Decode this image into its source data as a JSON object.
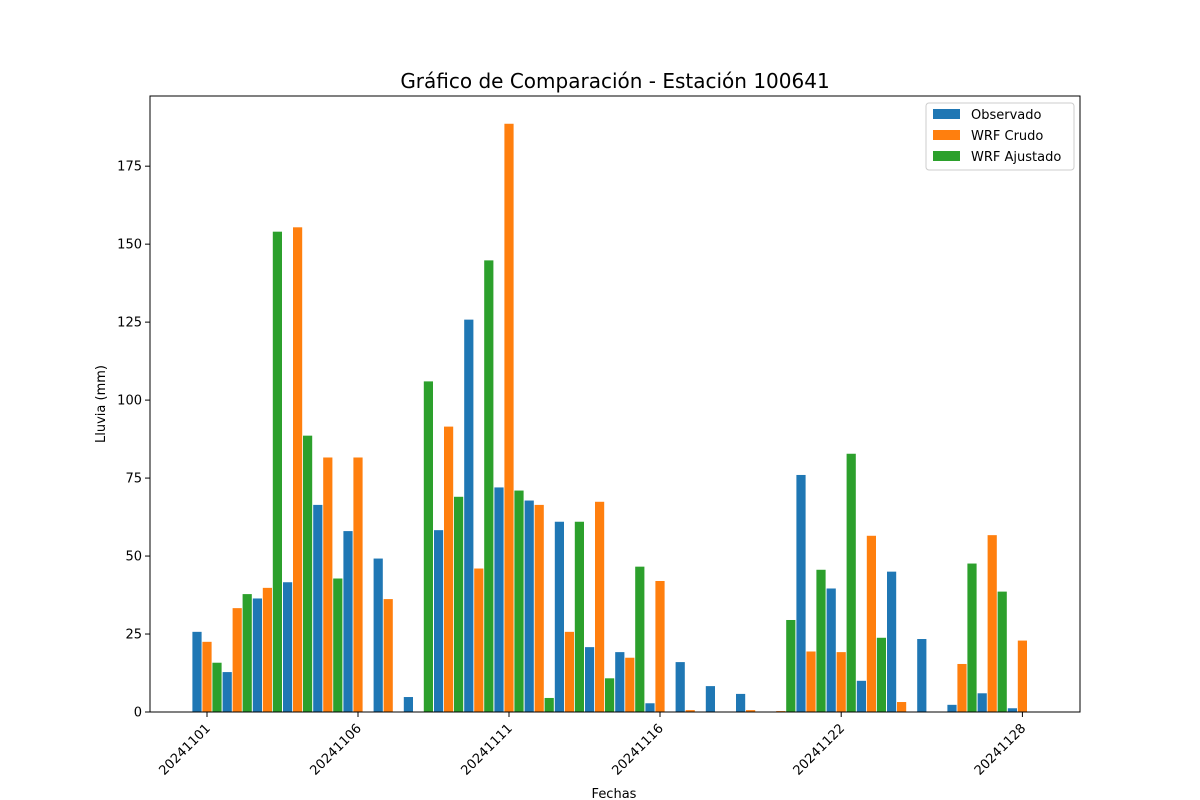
{
  "chart_data": {
    "type": "bar",
    "title": "Gráfico de Comparación - Estación 100641",
    "xlabel": "Fechas",
    "ylabel": "Lluvia (mm)",
    "ylim": [
      0,
      197.5
    ],
    "y_ticks": [
      0,
      25,
      50,
      75,
      100,
      125,
      150,
      175
    ],
    "x_tick_labels": [
      "20241101",
      "20241106",
      "20241111",
      "20241116",
      "20241122",
      "20241128"
    ],
    "grid": false,
    "legend_position": "top-right",
    "categories": [
      "20241101",
      "20241102",
      "20241103",
      "20241104",
      "20241105",
      "20241106",
      "20241107",
      "20241108",
      "20241109",
      "20241110",
      "20241111",
      "20241112",
      "20241113",
      "20241114",
      "20241115",
      "20241116",
      "20241117",
      "20241118",
      "20241119",
      "20241120",
      "20241121",
      "20241122",
      "20241123",
      "20241124",
      "20241125",
      "20241126",
      "20241127",
      "20241128",
      "20241129",
      "20241130"
    ],
    "series": [
      {
        "name": "Observado",
        "color": "#1f77b4",
        "values": [
          25.7,
          12.8,
          36.4,
          41.6,
          66.4,
          58.0,
          49.2,
          4.8,
          58.3,
          125.8,
          72.0,
          67.8,
          61.0,
          20.8,
          19.2,
          2.8,
          16.0,
          8.3,
          5.8,
          0.0,
          76.0,
          39.6,
          10.0,
          45.0,
          23.4,
          2.3,
          6.0,
          1.2,
          null,
          null
        ]
      },
      {
        "name": "WRF Crudo",
        "color": "#ff7f0e",
        "values": [
          22.5,
          33.3,
          39.8,
          155.4,
          81.6,
          81.6,
          36.2,
          0.0,
          91.5,
          46.0,
          188.6,
          66.4,
          25.7,
          67.4,
          17.4,
          42.0,
          0.6,
          0.0,
          0.6,
          0.3,
          19.4,
          19.2,
          56.5,
          3.2,
          0.0,
          15.4,
          56.7,
          22.9,
          null,
          null
        ]
      },
      {
        "name": "WRF Ajustado",
        "color": "#2ca02c",
        "values": [
          15.8,
          37.8,
          154.0,
          88.6,
          42.8,
          0.0,
          0.0,
          106.0,
          69.0,
          144.8,
          71.0,
          4.5,
          61.0,
          10.8,
          46.6,
          0.0,
          0.0,
          0.0,
          0.0,
          29.5,
          45.6,
          82.8,
          23.8,
          0.0,
          0.0,
          47.6,
          38.6,
          0.0,
          null,
          null
        ]
      }
    ]
  }
}
